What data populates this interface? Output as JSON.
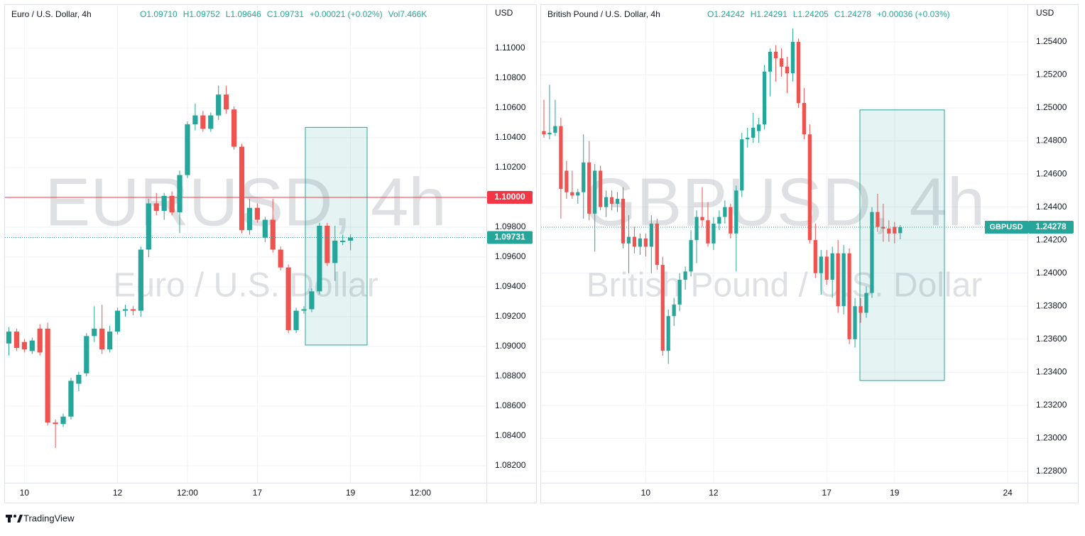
{
  "chart_data": [
    {
      "type": "candlestick",
      "title": "Euro / U.S. Dollar, 4h",
      "legend_values": [
        "O1.09710",
        "H1.09752",
        "L1.09646",
        "C1.09731",
        "+0.00021 (+0.02%)",
        "Vol7.466K"
      ],
      "watermark": "EURUSD, 4h",
      "watermark_subtitle": "Euro / U.S. Dollar",
      "axis_label": "USD",
      "up_color": "#26a69a",
      "down_color": "#ef5350",
      "categories": [
        null,
        null,
        "10",
        null,
        null,
        null,
        null,
        null,
        null,
        null,
        null,
        null,
        null,
        null,
        "12",
        null,
        null,
        null,
        null,
        null,
        null,
        null,
        null,
        "12:00",
        null,
        null,
        null,
        null,
        null,
        null,
        null,
        null,
        "17",
        null,
        null,
        null,
        null,
        null,
        null,
        null,
        null,
        null,
        null,
        null,
        "19",
        null,
        null,
        null,
        null,
        null,
        null,
        null,
        null,
        "12:00",
        null,
        null,
        null,
        null,
        null,
        null,
        null,
        null
      ],
      "series": [
        {
          "name": "open",
          "values": [
            1.0902,
            1.091,
            1.0903,
            1.0897,
            1.0912,
            1.0912,
            1.0849,
            1.0848,
            1.0853,
            1.0875,
            1.0882,
            1.0907,
            1.0912,
            1.0898,
            1.091,
            1.0924,
            1.0925,
            1.0924,
            1.0965,
            1.0996,
            1.0991,
            1.1001,
            1.099,
            1.1015,
            1.1049,
            1.1055,
            1.1046,
            1.1055,
            1.1069,
            1.1059,
            1.1034,
            1.0978,
            1.0993,
            1.0973,
            1.0985,
            1.0965,
            1.0953,
            1.0911,
            1.0924,
            1.0925,
            1.0937,
            1.0981,
            1.0956,
            1.097,
            1.0971,
            null,
            null,
            null,
            null,
            null,
            null,
            null,
            null,
            null,
            null,
            null,
            null,
            null,
            null,
            null,
            null,
            null
          ]
        },
        {
          "name": "high",
          "values": [
            1.0913,
            1.0912,
            1.0905,
            1.0906,
            1.0915,
            1.0916,
            1.0851,
            1.0855,
            1.0879,
            1.0883,
            1.0909,
            1.0927,
            1.0928,
            1.0914,
            1.0926,
            1.0928,
            1.0927,
            1.0967,
            1.0999,
            1.1003,
            1.1003,
            1.1004,
            1.1018,
            1.1051,
            1.1063,
            1.1058,
            1.1057,
            1.1075,
            1.1075,
            1.1061,
            1.1036,
            1.0999,
            1.0996,
            1.0987,
            1.0999,
            1.0967,
            1.0955,
            1.0926,
            1.0927,
            1.0939,
            1.0983,
            1.0983,
            1.0981,
            1.0975,
            1.09752,
            null,
            null,
            null,
            null,
            null,
            null,
            null,
            null,
            null,
            null,
            null,
            null,
            null,
            null,
            null,
            null,
            null
          ]
        },
        {
          "name": "low",
          "values": [
            1.0894,
            1.0897,
            1.0896,
            1.0895,
            1.0894,
            1.0847,
            1.0832,
            1.0846,
            1.0851,
            1.087,
            1.088,
            1.0903,
            1.0895,
            1.0896,
            1.0908,
            1.092,
            1.0921,
            1.092,
            1.096,
            1.0988,
            1.0985,
            1.0988,
            1.0976,
            1.1013,
            1.1045,
            1.1044,
            1.1044,
            1.1052,
            1.1056,
            1.1032,
            1.0976,
            1.0975,
            1.0983,
            1.097,
            1.0963,
            1.0951,
            1.0909,
            1.0909,
            1.0922,
            1.0923,
            1.0935,
            1.0954,
            1.0944,
            1.0968,
            1.09646,
            null,
            null,
            null,
            null,
            null,
            null,
            null,
            null,
            null,
            null,
            null,
            null,
            null,
            null,
            null,
            null,
            null
          ]
        },
        {
          "name": "close",
          "values": [
            1.091,
            1.0899,
            1.0898,
            1.0904,
            1.0896,
            1.0849,
            1.0848,
            1.0853,
            1.0877,
            1.0881,
            1.0907,
            1.0912,
            1.0898,
            1.091,
            1.0924,
            1.0925,
            1.0924,
            1.0965,
            1.0996,
            1.0991,
            1.1001,
            1.099,
            1.1015,
            1.1049,
            1.1055,
            1.1046,
            1.1055,
            1.1069,
            1.1059,
            1.1034,
            1.0978,
            1.0993,
            1.0985,
            1.0985,
            1.0965,
            1.0953,
            1.0911,
            1.0924,
            1.0925,
            1.0937,
            1.0981,
            1.0956,
            1.0971,
            1.0971,
            1.09731,
            null,
            null,
            null,
            null,
            null,
            null,
            null,
            null,
            null,
            null,
            null,
            null,
            null,
            null,
            null,
            null,
            null
          ]
        }
      ],
      "ylim": [
        1.08086,
        1.11286
      ],
      "yticks": [
        {
          "value": 1.082,
          "label": "1.08200"
        },
        {
          "value": 1.084,
          "label": "1.08400"
        },
        {
          "value": 1.086,
          "label": "1.08600"
        },
        {
          "value": 1.088,
          "label": "1.08800"
        },
        {
          "value": 1.09,
          "label": "1.09000"
        },
        {
          "value": 1.092,
          "label": "1.09200"
        },
        {
          "value": 1.094,
          "label": "1.09400"
        },
        {
          "value": 1.096,
          "label": "1.09600"
        },
        {
          "value": 1.098,
          "label": "1.09800"
        },
        {
          "value": 1.1,
          "label": "1.10000"
        },
        {
          "value": 1.102,
          "label": "1.10200"
        },
        {
          "value": 1.104,
          "label": "1.10400"
        },
        {
          "value": 1.106,
          "label": "1.10600"
        },
        {
          "value": 1.108,
          "label": "1.10800"
        },
        {
          "value": 1.11,
          "label": "1.11000"
        }
      ],
      "grid": true,
      "hline": {
        "value": 1.1,
        "label": "1.10000",
        "color": "#f23645"
      },
      "last_price": {
        "value": 1.09731,
        "label": "1.09731",
        "color": "#26a69a"
      },
      "box": {
        "top": 1.1047,
        "bottom": 1.0901,
        "color": "#26a69a"
      }
    },
    {
      "type": "candlestick",
      "title": "British Pound / U.S. Dollar, 4h",
      "legend_values": [
        "O1.24242",
        "H1.24291",
        "L1.24205",
        "C1.24278",
        "+0.00036 (+0.03%)"
      ],
      "watermark": "GBPUSD, 4h",
      "watermark_subtitle": "British Pound / U.S. Dollar",
      "axis_label": "USD",
      "up_color": "#26a69a",
      "down_color": "#ef5350",
      "categories": [
        null,
        null,
        null,
        null,
        null,
        null,
        null,
        null,
        null,
        null,
        null,
        null,
        null,
        null,
        null,
        null,
        null,
        null,
        "10",
        null,
        null,
        null,
        null,
        null,
        null,
        null,
        null,
        null,
        null,
        null,
        "12",
        null,
        null,
        null,
        null,
        null,
        null,
        null,
        null,
        null,
        null,
        null,
        null,
        null,
        null,
        null,
        null,
        null,
        null,
        null,
        "17",
        null,
        null,
        null,
        null,
        null,
        null,
        null,
        null,
        null,
        null,
        null,
        "19",
        null,
        null,
        null,
        null,
        null,
        null,
        null,
        null,
        null,
        null,
        null,
        null,
        null,
        null,
        null,
        null,
        null,
        null,
        null,
        "24",
        null,
        null,
        null
      ],
      "series": [
        {
          "name": "open",
          "values": [
            1.2486,
            1.2484,
            1.2485,
            1.2489,
            1.2462,
            1.2449,
            1.2447,
            1.2449,
            1.2467,
            1.2436,
            1.2462,
            1.244,
            1.2446,
            1.2442,
            1.2445,
            1.2418,
            1.2422,
            1.2416,
            1.2421,
            1.2416,
            1.243,
            1.2405,
            1.2353,
            1.2374,
            1.2381,
            1.2396,
            1.2401,
            1.242,
            1.2434,
            1.2432,
            1.2418,
            1.243,
            1.2434,
            1.244,
            1.2424,
            1.245,
            1.2481,
            1.2482,
            1.2486,
            1.249,
            1.2522,
            1.2534,
            1.253,
            1.2525,
            1.2521,
            1.254,
            1.2503,
            1.2484,
            1.242,
            1.24,
            1.241,
            1.2396,
            1.2412,
            1.238,
            1.2412,
            1.236,
            1.238,
            1.2376,
            1.2388,
            1.2437,
            1.2428,
            1.2427,
            1.2428,
            1.24242,
            null,
            null,
            null,
            null,
            null,
            null,
            null,
            null,
            null,
            null,
            null,
            null,
            null,
            null,
            null,
            null,
            null,
            null,
            null,
            null,
            null,
            null
          ]
        },
        {
          "name": "high",
          "values": [
            1.2505,
            1.2514,
            1.2505,
            1.2494,
            1.2468,
            1.2462,
            1.2451,
            1.2484,
            1.248,
            1.2466,
            1.2465,
            1.245,
            1.245,
            1.2449,
            1.2452,
            1.2435,
            1.2428,
            1.2424,
            1.2424,
            1.2435,
            1.2433,
            1.241,
            1.2378,
            1.2385,
            1.24,
            1.2404,
            1.2426,
            1.2438,
            1.2452,
            1.2443,
            1.2434,
            1.2438,
            1.2444,
            1.2442,
            1.2453,
            1.2485,
            1.2488,
            1.2497,
            1.2494,
            1.2526,
            1.2536,
            1.2538,
            1.2536,
            1.2531,
            1.2548,
            1.2542,
            1.2512,
            1.249,
            1.243,
            1.2414,
            1.2414,
            1.2416,
            1.242,
            1.2417,
            1.2415,
            1.2385,
            1.2385,
            1.2392,
            1.244,
            1.2448,
            1.2442,
            1.2432,
            1.2431,
            1.24291,
            null,
            null,
            null,
            null,
            null,
            null,
            null,
            null,
            null,
            null,
            null,
            null,
            null,
            null,
            null,
            null,
            null,
            null,
            null,
            null,
            null,
            null
          ]
        },
        {
          "name": "low",
          "values": [
            1.2482,
            1.2481,
            1.2483,
            1.2433,
            1.2445,
            1.2445,
            1.2442,
            1.2433,
            1.2432,
            1.2413,
            1.2438,
            1.2434,
            1.2438,
            1.2437,
            1.2415,
            1.24,
            1.2412,
            1.2411,
            1.241,
            1.24,
            1.2402,
            1.235,
            1.2345,
            1.2368,
            1.2377,
            1.239,
            1.2398,
            1.2406,
            1.2428,
            1.2416,
            1.2414,
            1.2426,
            1.243,
            1.2421,
            1.2401,
            1.2446,
            1.2476,
            1.2479,
            1.2479,
            1.2487,
            1.2507,
            1.2516,
            1.2519,
            1.2509,
            1.2516,
            1.25,
            1.2481,
            1.2418,
            1.2397,
            1.2387,
            1.2393,
            1.2385,
            1.2376,
            1.2375,
            1.2357,
            1.2355,
            1.237,
            1.2373,
            1.2385,
            1.2425,
            1.2419,
            1.2419,
            1.2418,
            1.24205,
            null,
            null,
            null,
            null,
            null,
            null,
            null,
            null,
            null,
            null,
            null,
            null,
            null,
            null,
            null,
            null,
            null,
            null,
            null,
            null,
            null,
            null
          ]
        },
        {
          "name": "close",
          "values": [
            1.2484,
            1.2485,
            1.2489,
            1.2451,
            1.2449,
            1.2447,
            1.2449,
            1.2467,
            1.2436,
            1.2462,
            1.244,
            1.2446,
            1.2442,
            1.2445,
            1.2418,
            1.2422,
            1.2416,
            1.2421,
            1.2416,
            1.243,
            1.2405,
            1.2353,
            1.2374,
            1.2381,
            1.2396,
            1.2401,
            1.242,
            1.2434,
            1.2432,
            1.2418,
            1.243,
            1.2434,
            1.244,
            1.2424,
            1.245,
            1.2481,
            1.2482,
            1.2488,
            1.249,
            1.2522,
            1.2534,
            1.253,
            1.2525,
            1.2521,
            1.254,
            1.2503,
            1.2484,
            1.242,
            1.24,
            1.241,
            1.2396,
            1.2412,
            1.238,
            1.2412,
            1.236,
            1.238,
            1.2376,
            1.2388,
            1.2437,
            1.2428,
            1.2427,
            1.2424,
            1.2424,
            1.24278,
            null,
            null,
            null,
            null,
            null,
            null,
            null,
            null,
            null,
            null,
            null,
            null,
            null,
            null,
            null,
            null,
            null,
            null,
            null,
            null,
            null,
            null
          ]
        }
      ],
      "ylim": [
        1.22731,
        1.25619
      ],
      "yticks": [
        {
          "value": 1.228,
          "label": "1.22800"
        },
        {
          "value": 1.23,
          "label": "1.23000"
        },
        {
          "value": 1.232,
          "label": "1.23200"
        },
        {
          "value": 1.234,
          "label": "1.23400"
        },
        {
          "value": 1.236,
          "label": "1.23600"
        },
        {
          "value": 1.238,
          "label": "1.23800"
        },
        {
          "value": 1.24,
          "label": "1.24000"
        },
        {
          "value": 1.242,
          "label": "1.24200"
        },
        {
          "value": 1.244,
          "label": "1.24400"
        },
        {
          "value": 1.246,
          "label": "1.24600"
        },
        {
          "value": 1.248,
          "label": "1.24800"
        },
        {
          "value": 1.25,
          "label": "1.25000"
        },
        {
          "value": 1.252,
          "label": "1.25200"
        },
        {
          "value": 1.254,
          "label": "1.25400"
        }
      ],
      "grid": true,
      "last_price": {
        "value": 1.24278,
        "label": "1.24278",
        "symbol": "GBPUSD",
        "color": "#26a69a"
      },
      "box": {
        "top": 1.24988,
        "bottom": 1.2335,
        "color": "#26a69a"
      }
    }
  ],
  "footer": {
    "brand": "TradingView"
  }
}
